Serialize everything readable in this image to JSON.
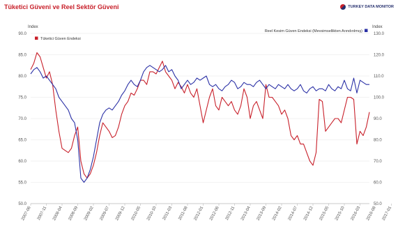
{
  "header": {
    "title": "Tüketici Güveni ve Reel Sektör Güveni",
    "brand": "TURKEY DATA MONITOR"
  },
  "chart_data": {
    "type": "line",
    "title": "Tüketici Güveni ve Reel Sektör Güveni",
    "left_axis": {
      "label": "Index",
      "range": [
        50,
        90
      ],
      "ticks": [
        "50.0",
        "55.0",
        "60.0",
        "65.0",
        "70.0",
        "75.0",
        "80.0",
        "85.0",
        "90.0"
      ]
    },
    "right_axis": {
      "label": "Index",
      "range": [
        50,
        130
      ],
      "ticks": [
        "50.0",
        "60.0",
        "70.0",
        "80.0",
        "90.0",
        "100.0",
        "110.0",
        "120.0",
        "130.0"
      ]
    },
    "x_tick_labels": [
      "2007-06",
      "2007-11",
      "2008-04",
      "2008-09",
      "2009-02",
      "2009-07",
      "2009-12",
      "2010-05",
      "2010-10",
      "2011-03",
      "2011-08",
      "2012-01",
      "2012-06",
      "2012-11",
      "2013-04",
      "2013-09",
      "2014-02",
      "2014-07",
      "2014-12",
      "2015-05",
      "2015-10",
      "2016-03",
      "2016-08",
      "2017-01"
    ],
    "grid": {
      "horizontal": true,
      "vertical": false
    },
    "legend_placement": "top",
    "series": [
      {
        "name": "Tüketici Güven Endeksi",
        "axis": "left",
        "color": "#c8202a",
        "values": [
          [
            0,
            81.5
          ],
          [
            1,
            83
          ],
          [
            2,
            85.5
          ],
          [
            3,
            84.5
          ],
          [
            4,
            82
          ],
          [
            5,
            79.5
          ],
          [
            6,
            81
          ],
          [
            7,
            78
          ],
          [
            8,
            72
          ],
          [
            9,
            67
          ],
          [
            10,
            63
          ],
          [
            11,
            62.5
          ],
          [
            12,
            62
          ],
          [
            13,
            63
          ],
          [
            14,
            66
          ],
          [
            15,
            68
          ],
          [
            16,
            60
          ],
          [
            17,
            57
          ],
          [
            18,
            56
          ],
          [
            19,
            57
          ],
          [
            20,
            59
          ],
          [
            21,
            62
          ],
          [
            22,
            66
          ],
          [
            23,
            69
          ],
          [
            24,
            68
          ],
          [
            25,
            67
          ],
          [
            26,
            65.5
          ],
          [
            27,
            66
          ],
          [
            28,
            68
          ],
          [
            29,
            71
          ],
          [
            30,
            73
          ],
          [
            31,
            74
          ],
          [
            32,
            76
          ],
          [
            33,
            75.5
          ],
          [
            34,
            77
          ],
          [
            35,
            79
          ],
          [
            36,
            79
          ],
          [
            37,
            78
          ],
          [
            38,
            81
          ],
          [
            39,
            81
          ],
          [
            40,
            80.5
          ],
          [
            41,
            82
          ],
          [
            42,
            83.5
          ],
          [
            43,
            81
          ],
          [
            44,
            80
          ],
          [
            45,
            79
          ],
          [
            46,
            77
          ],
          [
            47,
            78.5
          ],
          [
            48,
            77.5
          ],
          [
            49,
            76
          ],
          [
            50,
            78
          ],
          [
            51,
            76
          ],
          [
            52,
            75
          ],
          [
            53,
            77
          ],
          [
            54,
            73
          ],
          [
            55,
            69
          ],
          [
            56,
            72
          ],
          [
            57,
            75
          ],
          [
            58,
            77
          ],
          [
            59,
            73
          ],
          [
            60,
            72
          ],
          [
            61,
            75
          ],
          [
            62,
            74
          ],
          [
            63,
            73
          ],
          [
            64,
            74
          ],
          [
            65,
            72
          ],
          [
            66,
            71
          ],
          [
            67,
            73
          ],
          [
            68,
            77
          ],
          [
            69,
            75
          ],
          [
            70,
            70
          ],
          [
            71,
            73
          ],
          [
            72,
            74
          ],
          [
            73,
            72
          ],
          [
            74,
            70
          ],
          [
            75,
            78
          ],
          [
            76,
            75
          ],
          [
            77,
            75
          ],
          [
            78,
            74
          ],
          [
            79,
            73
          ],
          [
            80,
            71
          ],
          [
            81,
            72
          ],
          [
            82,
            70
          ],
          [
            83,
            66
          ],
          [
            84,
            65
          ],
          [
            85,
            66
          ],
          [
            86,
            64
          ],
          [
            87,
            64
          ],
          [
            88,
            62
          ],
          [
            89,
            60
          ],
          [
            90,
            59
          ],
          [
            91,
            62
          ],
          [
            92,
            74.5
          ],
          [
            93,
            74
          ],
          [
            94,
            67
          ],
          [
            95,
            68
          ],
          [
            96,
            69
          ],
          [
            97,
            70
          ],
          [
            98,
            70
          ],
          [
            99,
            69
          ],
          [
            100,
            72
          ],
          [
            101,
            75
          ],
          [
            102,
            75
          ],
          [
            103,
            74.5
          ],
          [
            104,
            64
          ],
          [
            105,
            67
          ],
          [
            106,
            66
          ],
          [
            107,
            68
          ],
          [
            108,
            71.5
          ]
        ]
      },
      {
        "name": "Reel Kesim Güven Endeksi (Mevsimsellikten Arındırılmış)",
        "axis": "right",
        "color": "#2b31a6",
        "values": [
          [
            0,
            111
          ],
          [
            1,
            113
          ],
          [
            2,
            114
          ],
          [
            3,
            112
          ],
          [
            4,
            109
          ],
          [
            5,
            110
          ],
          [
            6,
            108
          ],
          [
            7,
            106
          ],
          [
            8,
            104
          ],
          [
            9,
            100
          ],
          [
            10,
            98
          ],
          [
            11,
            96
          ],
          [
            12,
            94
          ],
          [
            13,
            90
          ],
          [
            14,
            88
          ],
          [
            15,
            80
          ],
          [
            16,
            62
          ],
          [
            17,
            60
          ],
          [
            18,
            62
          ],
          [
            19,
            66
          ],
          [
            20,
            72
          ],
          [
            21,
            80
          ],
          [
            22,
            88
          ],
          [
            23,
            92
          ],
          [
            24,
            94
          ],
          [
            25,
            95
          ],
          [
            26,
            94
          ],
          [
            27,
            96
          ],
          [
            28,
            98
          ],
          [
            29,
            101
          ],
          [
            30,
            103
          ],
          [
            31,
            106
          ],
          [
            32,
            108
          ],
          [
            33,
            106
          ],
          [
            34,
            105
          ],
          [
            35,
            108
          ],
          [
            36,
            112
          ],
          [
            37,
            114
          ],
          [
            38,
            115
          ],
          [
            39,
            114
          ],
          [
            40,
            113
          ],
          [
            41,
            112
          ],
          [
            42,
            113
          ],
          [
            43,
            115
          ],
          [
            44,
            112
          ],
          [
            45,
            113
          ],
          [
            46,
            110
          ],
          [
            47,
            108
          ],
          [
            48,
            104
          ],
          [
            49,
            106
          ],
          [
            50,
            108
          ],
          [
            51,
            106
          ],
          [
            52,
            107
          ],
          [
            53,
            109
          ],
          [
            54,
            108
          ],
          [
            55,
            109
          ],
          [
            56,
            110
          ],
          [
            57,
            106
          ],
          [
            58,
            105
          ],
          [
            59,
            106
          ],
          [
            60,
            104
          ],
          [
            61,
            103
          ],
          [
            62,
            105
          ],
          [
            63,
            106
          ],
          [
            64,
            108
          ],
          [
            65,
            107
          ],
          [
            66,
            104
          ],
          [
            67,
            105
          ],
          [
            68,
            107
          ],
          [
            69,
            106
          ],
          [
            70,
            106
          ],
          [
            71,
            105
          ],
          [
            72,
            107
          ],
          [
            73,
            108
          ],
          [
            74,
            106
          ],
          [
            75,
            104
          ],
          [
            76,
            106
          ],
          [
            77,
            105
          ],
          [
            78,
            104
          ],
          [
            79,
            106
          ],
          [
            80,
            105
          ],
          [
            81,
            104
          ],
          [
            82,
            106
          ],
          [
            83,
            104
          ],
          [
            84,
            103
          ],
          [
            85,
            104
          ],
          [
            86,
            106
          ],
          [
            87,
            103
          ],
          [
            88,
            102
          ],
          [
            89,
            104
          ],
          [
            90,
            105
          ],
          [
            91,
            103
          ],
          [
            92,
            104
          ],
          [
            93,
            104
          ],
          [
            94,
            103
          ],
          [
            95,
            106
          ],
          [
            96,
            104
          ],
          [
            97,
            103
          ],
          [
            98,
            105
          ],
          [
            99,
            104
          ],
          [
            100,
            108
          ],
          [
            101,
            104
          ],
          [
            102,
            103
          ],
          [
            103,
            109
          ],
          [
            104,
            102
          ],
          [
            105,
            108
          ],
          [
            106,
            107
          ],
          [
            107,
            106
          ],
          [
            108,
            106
          ]
        ]
      }
    ]
  }
}
